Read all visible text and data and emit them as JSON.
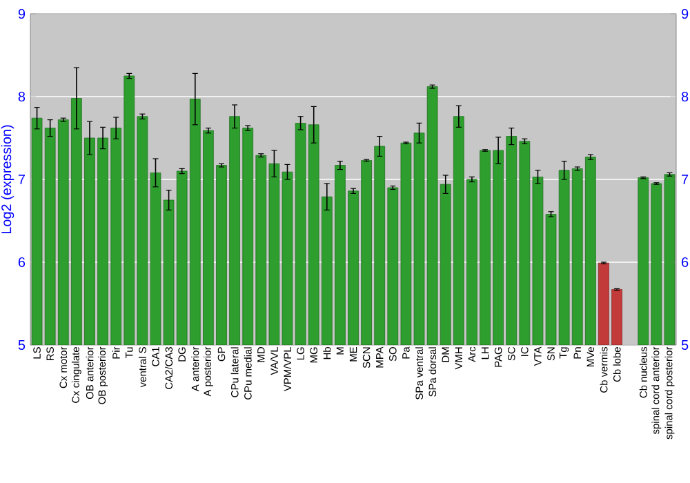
{
  "chart_data": {
    "type": "bar",
    "ylabel": "Log2 (expression)",
    "categories": [
      "LS",
      "RS",
      "Cx motor",
      "Cx cingulate",
      "OB anterior",
      "OB posterior",
      "Pir",
      "Tu",
      "ventral S",
      "CA1",
      "CA2/CA3",
      "DG",
      "A anterior",
      "A posterior",
      "GP",
      "CPu lateral",
      "CPu medial",
      "MD",
      "VA/VL",
      "VPM/VPL",
      "LG",
      "MG",
      "Hb",
      "M",
      "ME",
      "SCN",
      "MPA",
      "SO",
      "Pa",
      "SPa ventral",
      "SPa dorsal",
      "DM",
      "VMH",
      "Arc",
      "LH",
      "PAG",
      "SC",
      "IC",
      "VTA",
      "SN",
      "Tg",
      "Pn",
      "MVe",
      "Cb vermis",
      "Cb lobe",
      null,
      "Cb nucleus",
      "spinal cord anterior",
      "spinal cord posterior"
    ],
    "values": [
      7.74,
      7.62,
      7.72,
      7.98,
      7.5,
      7.5,
      7.62,
      8.25,
      7.76,
      7.08,
      6.75,
      7.1,
      7.97,
      7.59,
      7.17,
      7.76,
      7.62,
      7.29,
      7.19,
      7.09,
      7.68,
      7.66,
      6.79,
      7.17,
      6.86,
      7.23,
      7.4,
      6.9,
      7.44,
      7.56,
      8.12,
      6.94,
      7.76,
      7.0,
      7.35,
      7.35,
      7.52,
      7.46,
      7.03,
      6.58,
      7.11,
      7.13,
      7.27,
      5.99,
      5.67,
      null,
      7.02,
      6.95,
      7.06
    ],
    "errors": [
      0.13,
      0.1,
      0.02,
      0.37,
      0.2,
      0.13,
      0.13,
      0.03,
      0.03,
      0.17,
      0.12,
      0.03,
      0.31,
      0.03,
      0.02,
      0.14,
      0.03,
      0.02,
      0.16,
      0.09,
      0.08,
      0.22,
      0.16,
      0.05,
      0.03,
      0.01,
      0.12,
      0.02,
      0.01,
      0.12,
      0.02,
      0.11,
      0.13,
      0.03,
      0.01,
      0.16,
      0.1,
      0.03,
      0.08,
      0.03,
      0.11,
      0.02,
      0.03,
      0.01,
      0.01,
      null,
      0.01,
      0.01,
      0.02
    ],
    "colors": [
      "#2e9e2e",
      "#2e9e2e",
      "#2e9e2e",
      "#2e9e2e",
      "#2e9e2e",
      "#2e9e2e",
      "#2e9e2e",
      "#2e9e2e",
      "#2e9e2e",
      "#2e9e2e",
      "#2e9e2e",
      "#2e9e2e",
      "#2e9e2e",
      "#2e9e2e",
      "#2e9e2e",
      "#2e9e2e",
      "#2e9e2e",
      "#2e9e2e",
      "#2e9e2e",
      "#2e9e2e",
      "#2e9e2e",
      "#2e9e2e",
      "#2e9e2e",
      "#2e9e2e",
      "#2e9e2e",
      "#2e9e2e",
      "#2e9e2e",
      "#2e9e2e",
      "#2e9e2e",
      "#2e9e2e",
      "#2e9e2e",
      "#2e9e2e",
      "#2e9e2e",
      "#2e9e2e",
      "#2e9e2e",
      "#2e9e2e",
      "#2e9e2e",
      "#2e9e2e",
      "#2e9e2e",
      "#2e9e2e",
      "#2e9e2e",
      "#2e9e2e",
      "#2e9e2e",
      "#c23a3a",
      "#c23a3a",
      "#2e9e2e",
      "#2e9e2e",
      "#2e9e2e",
      "#2e9e2e"
    ],
    "ylim": [
      5,
      9
    ],
    "yticks": [
      5,
      6,
      7,
      8,
      9
    ],
    "y2lim": [
      5,
      9
    ],
    "y2ticks": [
      5,
      6,
      7,
      8,
      9
    ],
    "grid": "y"
  }
}
